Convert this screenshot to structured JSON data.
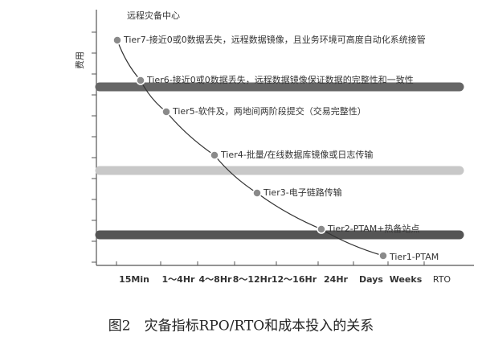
{
  "diagram": {
    "top_label": "远程灾备中心",
    "y_axis_label": "费用",
    "x_axis_labels": [
      "15Min",
      "1～4Hr",
      "4～8Hr",
      "8～12Hr",
      "12～16Hr",
      "24Hr",
      "Days",
      "Weeks",
      "RTO"
    ],
    "tiers": [
      {
        "label": "Tier7-接近0或0数据丢失，远程数据镜像，且业务环境可高度自动化系统接管"
      },
      {
        "label": "Tier6-接近0或0数据丢失，远程数据镜像保证数据的完整性和一致性"
      },
      {
        "label": "Tier5-软件及，两地间两阶段提交（交易完整性）"
      },
      {
        "label": "Tier4-批量/在线数据库镜像或日志传输"
      },
      {
        "label": "Tier3-电子链路传输"
      },
      {
        "label": "Tier2-PTAM+热备站点"
      },
      {
        "label": "Tier1-PTAM"
      }
    ]
  },
  "caption": "图2　灾备指标RPO/RTO和成本投入的关系"
}
